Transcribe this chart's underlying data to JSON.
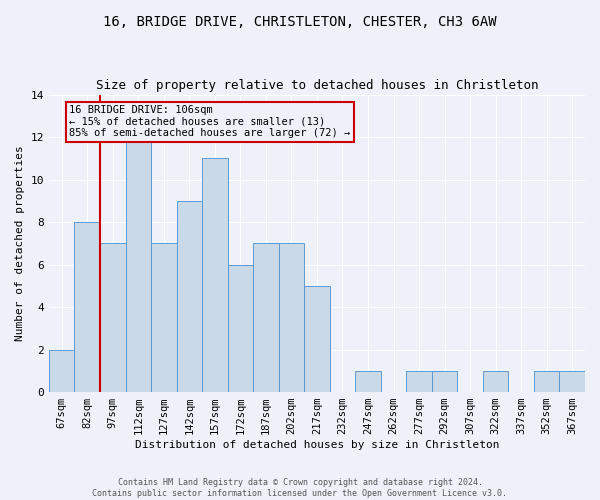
{
  "title": "16, BRIDGE DRIVE, CHRISTLETON, CHESTER, CH3 6AW",
  "subtitle": "Size of property relative to detached houses in Christleton",
  "xlabel": "Distribution of detached houses by size in Christleton",
  "ylabel": "Number of detached properties",
  "categories": [
    "67sqm",
    "82sqm",
    "97sqm",
    "112sqm",
    "127sqm",
    "142sqm",
    "157sqm",
    "172sqm",
    "187sqm",
    "202sqm",
    "217sqm",
    "232sqm",
    "247sqm",
    "262sqm",
    "277sqm",
    "292sqm",
    "307sqm",
    "322sqm",
    "337sqm",
    "352sqm",
    "367sqm"
  ],
  "values": [
    2,
    8,
    7,
    12,
    7,
    9,
    11,
    6,
    7,
    7,
    5,
    0,
    1,
    0,
    1,
    1,
    0,
    1,
    0,
    1,
    1
  ],
  "bar_color": "#c9d9e8",
  "bar_edge_color": "#5b9bd5",
  "vline_color": "#cc0000",
  "vline_x": 1.5,
  "annotation_text": "16 BRIDGE DRIVE: 106sqm\n← 15% of detached houses are smaller (13)\n85% of semi-detached houses are larger (72) →",
  "annotation_box_color": "#cc0000",
  "ylim": [
    0,
    14
  ],
  "yticks": [
    0,
    2,
    4,
    6,
    8,
    10,
    12,
    14
  ],
  "footer": "Contains HM Land Registry data © Crown copyright and database right 2024.\nContains public sector information licensed under the Open Government Licence v3.0.",
  "background_color": "#eef2f8",
  "grid_color": "#ffffff",
  "title_fontsize": 10,
  "subtitle_fontsize": 9,
  "xlabel_fontsize": 8,
  "ylabel_fontsize": 8,
  "tick_fontsize": 7.5,
  "ytick_fontsize": 8,
  "footer_fontsize": 6,
  "annotation_fontsize": 7.5
}
